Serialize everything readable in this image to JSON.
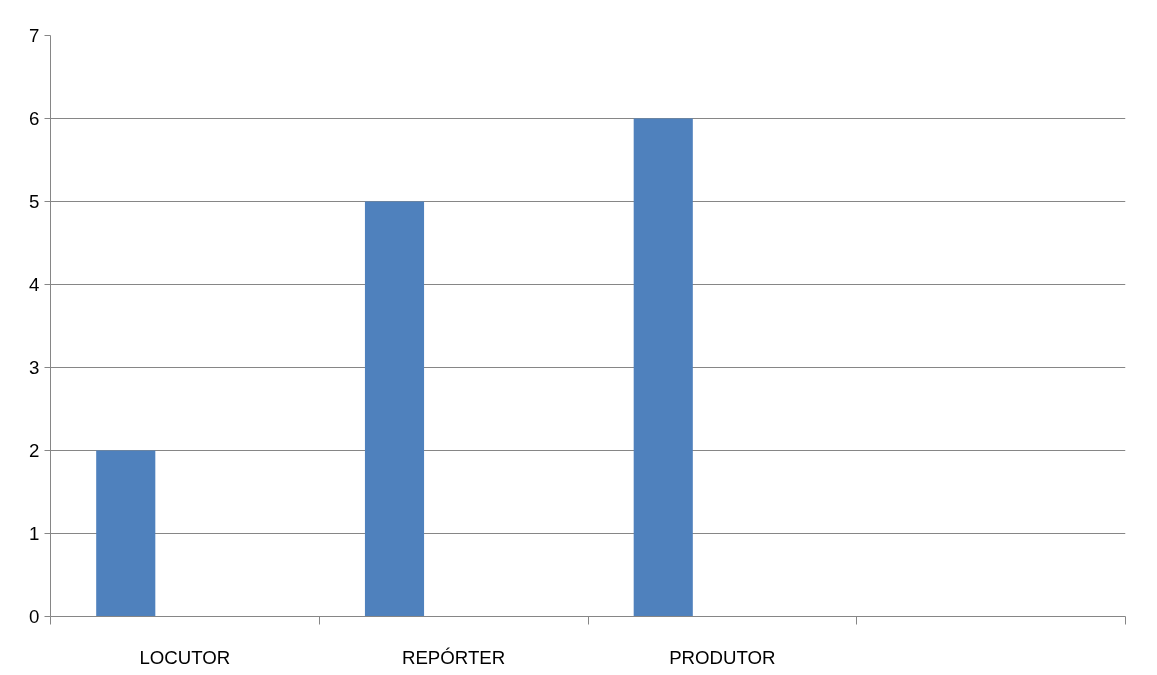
{
  "chart_data": {
    "type": "bar",
    "categories": [
      "LOCUTOR",
      "REPÓRTER",
      "PRODUTOR",
      null
    ],
    "values": [
      2,
      5,
      6,
      null
    ],
    "color": "#4f81bd",
    "ylim": [
      0,
      7
    ],
    "yticks": [
      0,
      1,
      2,
      3,
      4,
      5,
      6,
      7
    ],
    "grid": "y"
  }
}
